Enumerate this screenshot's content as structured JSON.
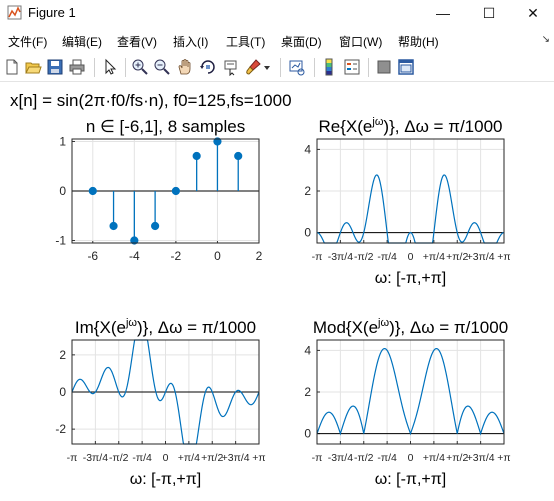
{
  "window": {
    "title": "Figure 1",
    "minimize_glyph": "—",
    "maximize_glyph": "☐",
    "close_glyph": "✕",
    "app_icon": "matlab-figure-icon"
  },
  "menu": {
    "items": [
      "文件(F)",
      "编辑(E)",
      "查看(V)",
      "插入(I)",
      "工具(T)",
      "桌面(D)",
      "窗口(W)",
      "帮助(H)"
    ],
    "overflow_glyph": "↘"
  },
  "toolbar": {
    "icons": [
      "new-figure-icon",
      "open-file-icon",
      "save-icon",
      "print-icon",
      "select-pointer-icon",
      "zoom-in-icon",
      "zoom-out-icon",
      "pan-hand-icon",
      "rotate-3d-icon",
      "data-cursor-icon",
      "brush-icon",
      "brush-dropdown-icon",
      "link-plot-icon",
      "insert-colorbar-icon",
      "insert-legend-icon",
      "hide-plot-tools-icon",
      "show-plot-tools-icon"
    ]
  },
  "figure": {
    "suptitle": "x[n] = sin(2π·f0/fs·n), f0=125,fs=1000"
  },
  "chart_data": [
    {
      "type": "stem",
      "title": "n ∈ [-6,1], 8 samples",
      "x": [
        -6,
        -5,
        -4,
        -3,
        -2,
        -1,
        0,
        1
      ],
      "y": [
        0,
        -0.7071,
        -1,
        -0.7071,
        0,
        0.7071,
        1,
        0.7071
      ],
      "xlim": [
        -7,
        2
      ],
      "ylim": [
        -1.05,
        1.05
      ],
      "xticks": [
        "-6",
        "-4",
        "-2",
        "0",
        "2"
      ],
      "yticks": [
        "-1",
        "0",
        "1"
      ],
      "xlabel": "",
      "color": "#0072BD",
      "grid": true
    },
    {
      "type": "line",
      "title": "Re{X(e^jω)}, Δω = π/1000",
      "title_parts": [
        "Re{X(e",
        "jω",
        ")}, Δω = π/1000"
      ],
      "xlim": [
        -3.1416,
        3.1416
      ],
      "ylim": [
        -0.5,
        4.5
      ],
      "xticks": [
        "-π",
        "-3π/4",
        "-π/2",
        "-π/4",
        "0",
        "+π/4",
        "+π/2",
        "+3π/4",
        "+π"
      ],
      "yticks": [
        "0",
        "2",
        "4"
      ],
      "xlabel": "ω: [-π,+π]",
      "color": "#0072BD",
      "peak_value": 4,
      "grid": true
    },
    {
      "type": "line",
      "title": "Im{X(e^jω)}, Δω = π/1000",
      "title_parts": [
        "Im{X(e",
        "jω",
        ")}, Δω = π/1000"
      ],
      "xlim": [
        -3.1416,
        3.1416
      ],
      "ylim": [
        -2.8,
        2.8
      ],
      "xticks": [
        "-π",
        "-3π/4",
        "-π/2",
        "-π/4",
        "0",
        "+π/4",
        "+π/2",
        "+3π/4",
        "+π"
      ],
      "yticks": [
        "-2",
        "0",
        "2"
      ],
      "xlabel": "ω: [-π,+π]",
      "color": "#0072BD",
      "grid": true
    },
    {
      "type": "line",
      "title": "Mod{X(e^jω)}, Δω = π/1000",
      "title_parts": [
        "Mod{X(e",
        "jω",
        ")}, Δω = π/1000"
      ],
      "xlim": [
        -3.1416,
        3.1416
      ],
      "ylim": [
        -0.5,
        4.5
      ],
      "xticks": [
        "-π",
        "-3π/4",
        "-π/2",
        "-π/4",
        "0",
        "+π/4",
        "+π/2",
        "+3π/4",
        "+π"
      ],
      "yticks": [
        "0",
        "2",
        "4"
      ],
      "xlabel": "ω: [-π,+π]",
      "color": "#0072BD",
      "peak_value": 4,
      "grid": true
    }
  ]
}
